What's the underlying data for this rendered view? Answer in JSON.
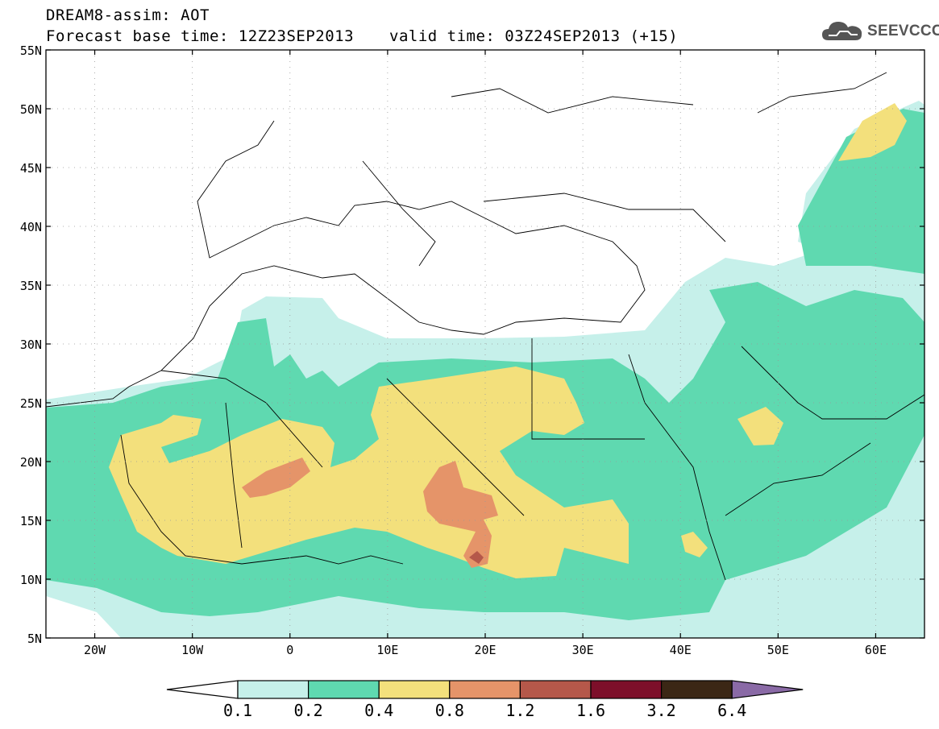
{
  "title": {
    "line1": "DREAM8-assim: AOT",
    "base_time": "Forecast base time: 12Z23SEP2013",
    "valid_time": "valid time: 03Z24SEP2013 (+15)"
  },
  "logo": {
    "text": "SEEVCCC",
    "icon": "cloud-icon"
  },
  "map": {
    "region": "North Africa, Mediterranean, Middle East",
    "lat_ticks": [
      "55N",
      "50N",
      "45N",
      "40N",
      "35N",
      "30N",
      "25N",
      "20N",
      "15N",
      "10N",
      "5N"
    ],
    "lon_ticks": [
      "20W",
      "10W",
      "0",
      "10E",
      "20E",
      "30E",
      "40E",
      "50E",
      "60E"
    ],
    "lon_range": [
      -25,
      65
    ],
    "lat_range": [
      5,
      55
    ]
  },
  "colorbar": {
    "labels": [
      "0.1",
      "0.2",
      "0.4",
      "0.8",
      "1.2",
      "1.6",
      "3.2",
      "6.4"
    ],
    "colors": [
      "#c6f0ea",
      "#5fd9b0",
      "#f3e07c",
      "#e59469",
      "#b5584a",
      "#7d0f2a",
      "#3b2715",
      "#8a6aa6"
    ],
    "under_color": "#ffffff"
  }
}
